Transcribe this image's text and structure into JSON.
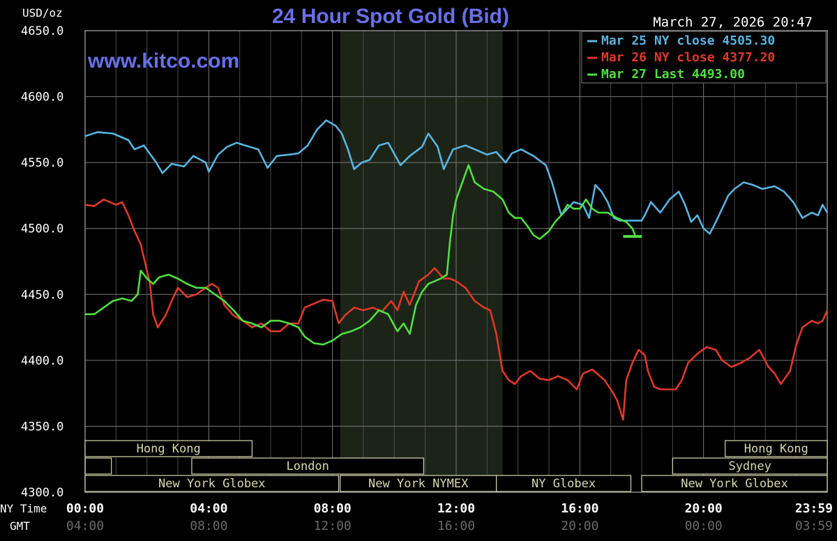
{
  "chart_data": {
    "type": "line",
    "title": "24 Hour Spot Gold (Bid)",
    "unit_label": "USD/oz",
    "watermark": "www.kitco.com",
    "timestamp": "March 27, 2026 20:47",
    "ylim": [
      4300,
      4650
    ],
    "y_ticks": [
      "4650.0",
      "4600.0",
      "4550.0",
      "4500.0",
      "4450.0",
      "4400.0",
      "4350.0",
      "4300.0"
    ],
    "xlim": [
      0,
      24
    ],
    "x_row_labels": {
      "ny": "NY Time",
      "gmt": "GMT"
    },
    "x_ticks": [
      {
        "hour": 0,
        "ny": "00:00",
        "gmt": "04:00"
      },
      {
        "hour": 4,
        "ny": "04:00",
        "gmt": "08:00"
      },
      {
        "hour": 8,
        "ny": "08:00",
        "gmt": "12:00"
      },
      {
        "hour": 12,
        "ny": "12:00",
        "gmt": "16:00"
      },
      {
        "hour": 16,
        "ny": "16:00",
        "gmt": "20:00"
      },
      {
        "hour": 20,
        "ny": "20:00",
        "gmt": "00:00"
      },
      {
        "hour": 23.98,
        "ny": "23:59",
        "gmt": "03:59"
      }
    ],
    "shaded_hours": [
      8.25,
      13.5
    ],
    "grid": true,
    "legend_position": "top-right",
    "series": [
      {
        "name": "Mar 25 NY close 4505.30",
        "color": "#5ab4e0",
        "points": [
          [
            0,
            4570
          ],
          [
            0.4,
            4573
          ],
          [
            0.9,
            4572
          ],
          [
            1.4,
            4567
          ],
          [
            1.6,
            4560
          ],
          [
            1.9,
            4563
          ],
          [
            2.3,
            4550
          ],
          [
            2.5,
            4542
          ],
          [
            2.8,
            4549
          ],
          [
            3.2,
            4547
          ],
          [
            3.5,
            4555
          ],
          [
            3.9,
            4550
          ],
          [
            4.0,
            4543
          ],
          [
            4.3,
            4556
          ],
          [
            4.6,
            4562
          ],
          [
            4.9,
            4565
          ],
          [
            5.3,
            4562
          ],
          [
            5.6,
            4560
          ],
          [
            5.9,
            4546
          ],
          [
            6.2,
            4555
          ],
          [
            6.6,
            4556
          ],
          [
            6.9,
            4557
          ],
          [
            7.2,
            4563
          ],
          [
            7.5,
            4575
          ],
          [
            7.8,
            4582
          ],
          [
            8.1,
            4578
          ],
          [
            8.3,
            4572
          ],
          [
            8.5,
            4560
          ],
          [
            8.7,
            4545
          ],
          [
            8.95,
            4550
          ],
          [
            9.2,
            4552
          ],
          [
            9.5,
            4563
          ],
          [
            9.8,
            4565
          ],
          [
            10.2,
            4548
          ],
          [
            10.5,
            4555
          ],
          [
            10.9,
            4562
          ],
          [
            11.1,
            4572
          ],
          [
            11.4,
            4562
          ],
          [
            11.6,
            4545
          ],
          [
            11.9,
            4560
          ],
          [
            12.3,
            4563
          ],
          [
            12.6,
            4560
          ],
          [
            13.0,
            4556
          ],
          [
            13.3,
            4558
          ],
          [
            13.6,
            4550
          ],
          [
            13.8,
            4557
          ],
          [
            14.1,
            4560
          ],
          [
            14.5,
            4555
          ],
          [
            14.9,
            4548
          ],
          [
            15.1,
            4535
          ],
          [
            15.4,
            4510
          ],
          [
            15.8,
            4520
          ],
          [
            16.1,
            4518
          ],
          [
            16.3,
            4508
          ],
          [
            16.5,
            4533
          ],
          [
            16.7,
            4528
          ],
          [
            16.9,
            4520
          ],
          [
            17.1,
            4508
          ],
          [
            17.3,
            4506
          ],
          [
            17.8,
            4506
          ],
          [
            18.0,
            4506
          ],
          [
            18.1,
            4510
          ],
          [
            18.3,
            4520
          ],
          [
            18.6,
            4512
          ],
          [
            18.9,
            4522
          ],
          [
            19.2,
            4528
          ],
          [
            19.4,
            4518
          ],
          [
            19.6,
            4505
          ],
          [
            19.8,
            4510
          ],
          [
            20.0,
            4500
          ],
          [
            20.2,
            4496
          ],
          [
            20.4,
            4505
          ],
          [
            20.6,
            4515
          ],
          [
            20.8,
            4525
          ],
          [
            21.0,
            4530
          ],
          [
            21.3,
            4535
          ],
          [
            21.6,
            4533
          ],
          [
            21.9,
            4530
          ],
          [
            22.3,
            4532
          ],
          [
            22.6,
            4528
          ],
          [
            22.9,
            4520
          ],
          [
            23.2,
            4508
          ],
          [
            23.5,
            4512
          ],
          [
            23.7,
            4510
          ],
          [
            23.85,
            4518
          ],
          [
            24.0,
            4512
          ]
        ]
      },
      {
        "name": "Mar 26 NY close 4377.20",
        "color": "#e03828",
        "points": [
          [
            0,
            4518
          ],
          [
            0.3,
            4517
          ],
          [
            0.6,
            4522
          ],
          [
            1.0,
            4518
          ],
          [
            1.2,
            4520
          ],
          [
            1.4,
            4510
          ],
          [
            1.6,
            4498
          ],
          [
            1.8,
            4488
          ],
          [
            1.9,
            4478
          ],
          [
            2.1,
            4458
          ],
          [
            2.2,
            4435
          ],
          [
            2.35,
            4425
          ],
          [
            2.6,
            4434
          ],
          [
            2.8,
            4445
          ],
          [
            3.0,
            4455
          ],
          [
            3.3,
            4448
          ],
          [
            3.6,
            4450
          ],
          [
            3.9,
            4455
          ],
          [
            4.1,
            4458
          ],
          [
            4.3,
            4455
          ],
          [
            4.5,
            4442
          ],
          [
            4.8,
            4434
          ],
          [
            5.1,
            4430
          ],
          [
            5.4,
            4425
          ],
          [
            5.7,
            4428
          ],
          [
            6.0,
            4422
          ],
          [
            6.3,
            4422
          ],
          [
            6.6,
            4428
          ],
          [
            6.9,
            4428
          ],
          [
            7.1,
            4440
          ],
          [
            7.4,
            4443
          ],
          [
            7.7,
            4446
          ],
          [
            8.0,
            4445
          ],
          [
            8.2,
            4428
          ],
          [
            8.4,
            4434
          ],
          [
            8.7,
            4440
          ],
          [
            9.0,
            4438
          ],
          [
            9.3,
            4440
          ],
          [
            9.6,
            4437
          ],
          [
            9.9,
            4445
          ],
          [
            10.1,
            4438
          ],
          [
            10.3,
            4452
          ],
          [
            10.5,
            4442
          ],
          [
            10.8,
            4460
          ],
          [
            11.1,
            4465
          ],
          [
            11.3,
            4470
          ],
          [
            11.6,
            4462
          ],
          [
            11.8,
            4462
          ],
          [
            12.0,
            4460
          ],
          [
            12.3,
            4455
          ],
          [
            12.6,
            4445
          ],
          [
            12.9,
            4440
          ],
          [
            13.1,
            4438
          ],
          [
            13.3,
            4420
          ],
          [
            13.5,
            4392
          ],
          [
            13.7,
            4385
          ],
          [
            13.9,
            4382
          ],
          [
            14.1,
            4388
          ],
          [
            14.4,
            4392
          ],
          [
            14.7,
            4386
          ],
          [
            15.0,
            4385
          ],
          [
            15.3,
            4388
          ],
          [
            15.6,
            4385
          ],
          [
            15.9,
            4378
          ],
          [
            16.1,
            4390
          ],
          [
            16.4,
            4393
          ],
          [
            16.8,
            4385
          ],
          [
            17.0,
            4378
          ],
          [
            17.2,
            4370
          ],
          [
            17.4,
            4355
          ],
          [
            17.5,
            4385
          ],
          [
            17.7,
            4398
          ],
          [
            17.9,
            4408
          ],
          [
            18.1,
            4404
          ],
          [
            18.2,
            4392
          ],
          [
            18.4,
            4380
          ],
          [
            18.6,
            4378
          ],
          [
            18.9,
            4378
          ],
          [
            19.1,
            4378
          ],
          [
            19.3,
            4385
          ],
          [
            19.5,
            4398
          ],
          [
            19.8,
            4405
          ],
          [
            20.1,
            4410
          ],
          [
            20.4,
            4408
          ],
          [
            20.6,
            4400
          ],
          [
            20.9,
            4395
          ],
          [
            21.2,
            4398
          ],
          [
            21.5,
            4402
          ],
          [
            21.8,
            4408
          ],
          [
            22.1,
            4395
          ],
          [
            22.3,
            4390
          ],
          [
            22.5,
            4382
          ],
          [
            22.8,
            4392
          ],
          [
            23.0,
            4412
          ],
          [
            23.2,
            4425
          ],
          [
            23.5,
            4430
          ],
          [
            23.7,
            4428
          ],
          [
            23.85,
            4430
          ],
          [
            24.0,
            4438
          ]
        ]
      },
      {
        "name": "Mar 27 Last 4493.00",
        "color": "#50e040",
        "points": [
          [
            0,
            4435
          ],
          [
            0.3,
            4435
          ],
          [
            0.6,
            4440
          ],
          [
            0.9,
            4445
          ],
          [
            1.2,
            4447
          ],
          [
            1.5,
            4445
          ],
          [
            1.7,
            4450
          ],
          [
            1.8,
            4468
          ],
          [
            2.0,
            4462
          ],
          [
            2.2,
            4458
          ],
          [
            2.4,
            4463
          ],
          [
            2.7,
            4465
          ],
          [
            3.0,
            4462
          ],
          [
            3.3,
            4458
          ],
          [
            3.6,
            4455
          ],
          [
            3.9,
            4455
          ],
          [
            4.2,
            4450
          ],
          [
            4.5,
            4445
          ],
          [
            4.8,
            4438
          ],
          [
            5.1,
            4430
          ],
          [
            5.4,
            4428
          ],
          [
            5.7,
            4425
          ],
          [
            6.0,
            4430
          ],
          [
            6.3,
            4430
          ],
          [
            6.6,
            4428
          ],
          [
            6.9,
            4425
          ],
          [
            7.1,
            4418
          ],
          [
            7.4,
            4413
          ],
          [
            7.7,
            4412
          ],
          [
            8.0,
            4415
          ],
          [
            8.3,
            4420
          ],
          [
            8.6,
            4422
          ],
          [
            8.9,
            4425
          ],
          [
            9.2,
            4430
          ],
          [
            9.5,
            4438
          ],
          [
            9.8,
            4435
          ],
          [
            10.1,
            4422
          ],
          [
            10.3,
            4428
          ],
          [
            10.5,
            4420
          ],
          [
            10.7,
            4442
          ],
          [
            10.9,
            4452
          ],
          [
            11.1,
            4458
          ],
          [
            11.3,
            4460
          ],
          [
            11.5,
            4462
          ],
          [
            11.7,
            4465
          ],
          [
            11.8,
            4490
          ],
          [
            11.9,
            4510
          ],
          [
            12.0,
            4522
          ],
          [
            12.2,
            4535
          ],
          [
            12.4,
            4548
          ],
          [
            12.6,
            4535
          ],
          [
            12.9,
            4530
          ],
          [
            13.2,
            4528
          ],
          [
            13.5,
            4522
          ],
          [
            13.7,
            4512
          ],
          [
            13.9,
            4508
          ],
          [
            14.1,
            4508
          ],
          [
            14.3,
            4502
          ],
          [
            14.5,
            4495
          ],
          [
            14.7,
            4492
          ],
          [
            15.0,
            4498
          ],
          [
            15.2,
            4505
          ],
          [
            15.4,
            4510
          ],
          [
            15.6,
            4518
          ],
          [
            15.8,
            4515
          ],
          [
            16.0,
            4515
          ],
          [
            16.2,
            4522
          ],
          [
            16.4,
            4515
          ],
          [
            16.6,
            4512
          ],
          [
            16.9,
            4512
          ],
          [
            17.2,
            4508
          ],
          [
            17.5,
            4505
          ],
          [
            17.7,
            4500
          ],
          [
            17.8,
            4494
          ],
          [
            18.0,
            4494
          ]
        ]
      }
    ],
    "sessions": [
      {
        "name": "Hong Kong",
        "rows": [
          0
        ],
        "segments": [
          [
            0,
            5.4
          ],
          [
            20.7,
            24
          ]
        ]
      },
      {
        "name": "Sydney",
        "rows": [
          1
        ],
        "segments": [
          [
            19.0,
            24
          ]
        ]
      },
      {
        "name": "London",
        "rows": [
          1
        ],
        "segments": [
          [
            3.45,
            10.95
          ]
        ]
      },
      {
        "name": "New York Globex",
        "rows": [
          2
        ],
        "segments": [
          [
            0,
            8.2
          ],
          [
            18.0,
            24
          ]
        ]
      },
      {
        "name": "New York NYMEX",
        "rows": [
          2
        ],
        "segments": [
          [
            8.25,
            13.3
          ]
        ]
      },
      {
        "name": "NY Globex",
        "rows": [
          2
        ],
        "segments": [
          [
            13.3,
            17.65
          ]
        ]
      }
    ]
  }
}
